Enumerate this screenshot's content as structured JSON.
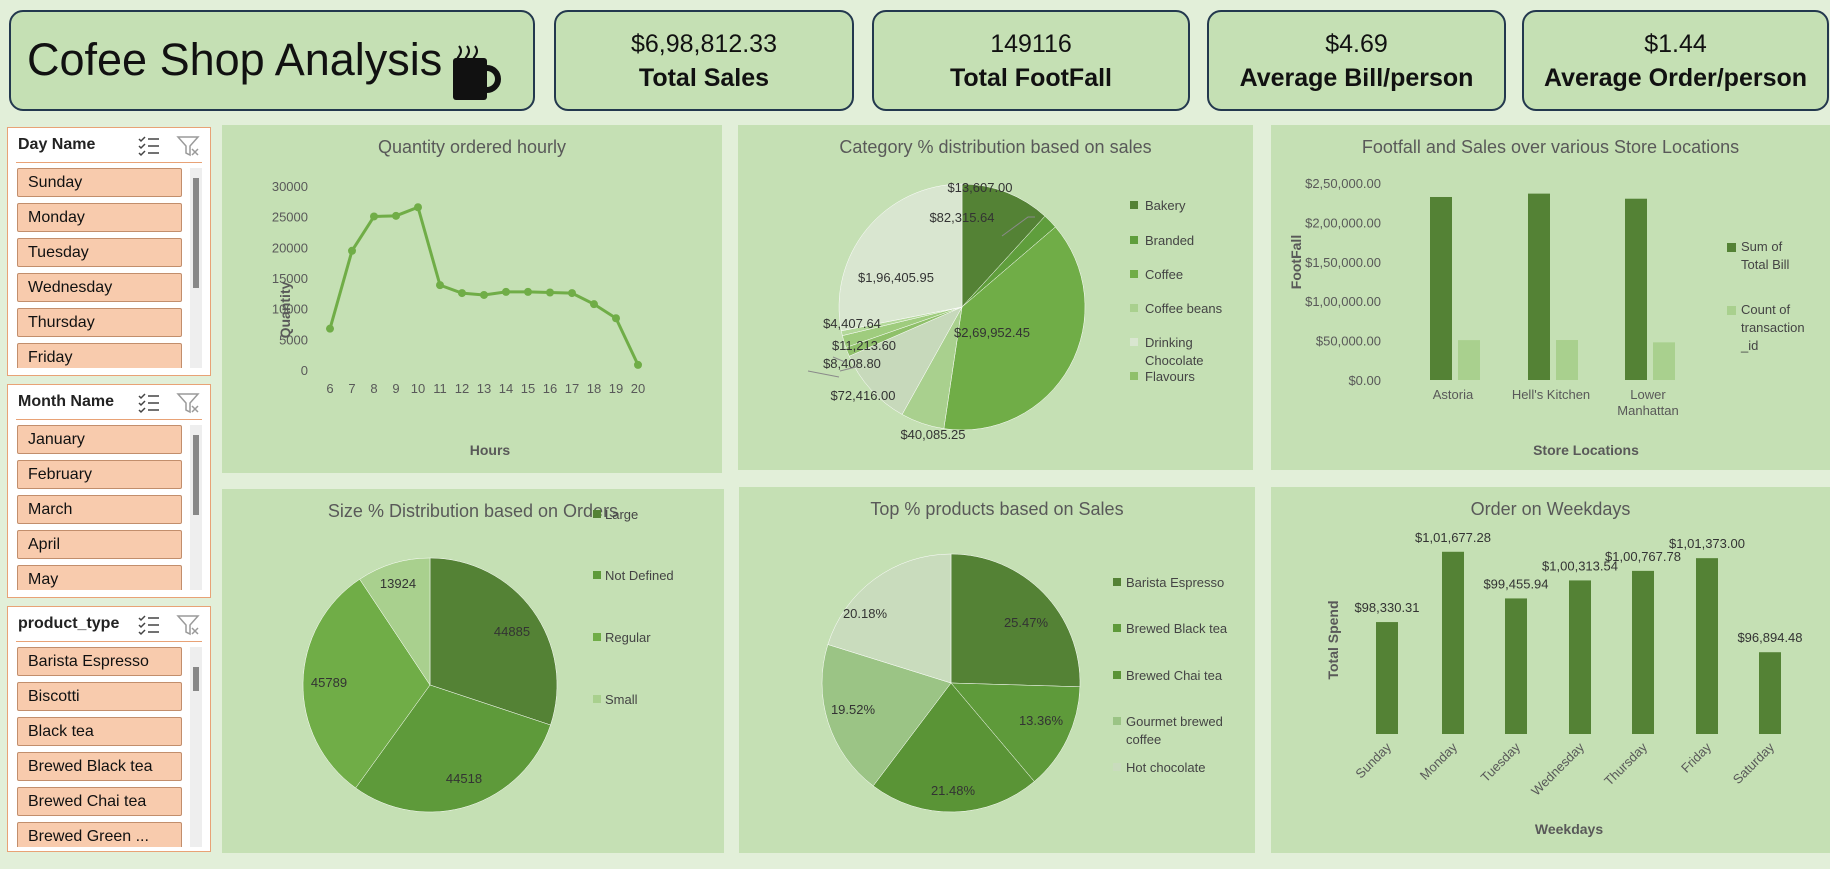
{
  "header": {
    "title": "Cofee Shop Analysis"
  },
  "kpis": [
    {
      "value": "$6,98,812.33",
      "label": "Total Sales"
    },
    {
      "value": "149116",
      "label": "Total FootFall"
    },
    {
      "value": "$4.69",
      "label": "Average Bill/person"
    },
    {
      "value": "$1.44",
      "label": "Average Order/person"
    }
  ],
  "slicers": {
    "day": {
      "title": "Day Name",
      "items": [
        "Sunday",
        "Monday",
        "Tuesday",
        "Wednesday",
        "Thursday",
        "Friday"
      ]
    },
    "month": {
      "title": "Month Name",
      "items": [
        "January",
        "February",
        "March",
        "April",
        "May"
      ]
    },
    "product": {
      "title": "product_type",
      "items": [
        "Barista Espresso",
        "Biscotti",
        "Black tea",
        "Brewed Black tea",
        "Brewed Chai tea",
        "Brewed Green ..."
      ]
    }
  },
  "colors": {
    "dark": "#548235",
    "mid": "#5e9a3a",
    "bright": "#70ad47",
    "light": "#a9d08e",
    "pale": "#d9e6d0",
    "bg": "#c5e0b4"
  },
  "chart_data": [
    {
      "type": "line",
      "title": "Quantity ordered hourly",
      "xlabel": "Hours",
      "ylabel": "Quantity",
      "x": [
        6,
        7,
        8,
        9,
        10,
        11,
        12,
        13,
        14,
        15,
        16,
        17,
        18,
        19,
        20
      ],
      "values": [
        6900,
        19600,
        25200,
        25300,
        26700,
        14000,
        12700,
        12400,
        12900,
        12900,
        12800,
        12700,
        10900,
        8600,
        1000
      ],
      "ylim": [
        0,
        30000
      ],
      "yticks": [
        "30000",
        "25000",
        "20000",
        "15000",
        "10000",
        "5000",
        "0"
      ]
    },
    {
      "type": "pie",
      "title": "Category % distribution based on sales",
      "series": [
        {
          "name": "Bakery",
          "value": 82315.64,
          "label": "$82,315.64"
        },
        {
          "name": "Branded",
          "value": 13607.0,
          "label": "$13,607.00"
        },
        {
          "name": "Coffee",
          "value": 269952.45,
          "label": "$2,69,952.45"
        },
        {
          "name": "Coffee beans",
          "value": 40085.25,
          "label": "$40,085.25"
        },
        {
          "name": "Drinking Chocolate",
          "value": 72416.0,
          "label": "$72,416.00"
        },
        {
          "name": "Flavours",
          "value": 8408.8,
          "label": "$8,408.80"
        },
        {
          "name": "",
          "value": 11213.6,
          "label": "$11,213.60"
        },
        {
          "name": "",
          "value": 4407.64,
          "label": "$4,407.64"
        },
        {
          "name": "",
          "value": 196405.95,
          "label": "$1,96,405.95"
        }
      ],
      "legend": [
        "Bakery",
        "Branded",
        "Coffee",
        "Coffee beans",
        "Drinking Chocolate",
        "Flavours"
      ]
    },
    {
      "type": "bar",
      "title": "Footfall and Sales over various Store Locations",
      "xlabel": "Store Locations",
      "ylabel": "FootFall",
      "categories": [
        "Astoria",
        "Hell's Kitchen",
        "Lower Manhattan"
      ],
      "series": [
        {
          "name": "Sum of Total Bill",
          "values": [
            232244,
            236511,
            230057
          ]
        },
        {
          "name": "Count of transaction _id",
          "values": [
            50599,
            50735,
            47782
          ]
        }
      ],
      "ylim": [
        0,
        250000
      ],
      "yticks": [
        "$2,50,000.00",
        "$2,00,000.00",
        "$1,50,000.00",
        "$1,00,000.00",
        "$50,000.00",
        "$0.00"
      ]
    },
    {
      "type": "pie",
      "title": "Size % Distribution based on Orders",
      "series": [
        {
          "name": "Large",
          "value": 44885,
          "label": "44885"
        },
        {
          "name": "Not Defined",
          "value": 44518,
          "label": "44518"
        },
        {
          "name": "Regular",
          "value": 45789,
          "label": "45789"
        },
        {
          "name": "Small",
          "value": 13924,
          "label": "13924"
        }
      ]
    },
    {
      "type": "pie",
      "title": "Top % products based on Sales",
      "series": [
        {
          "name": "Barista Espresso",
          "value": 25.47,
          "label": "25.47%"
        },
        {
          "name": "Brewed Black tea",
          "value": 13.36,
          "label": "13.36%"
        },
        {
          "name": "Brewed Chai tea",
          "value": 21.48,
          "label": "21.48%"
        },
        {
          "name": "Gourmet brewed coffee",
          "value": 19.52,
          "label": "19.52%"
        },
        {
          "name": "Hot chocolate",
          "value": 20.18,
          "label": "20.18%"
        }
      ]
    },
    {
      "type": "bar",
      "title": "Order on Weekdays",
      "xlabel": "Weekdays",
      "ylabel": "Total Spend",
      "categories": [
        "Sunday",
        "Monday",
        "Tuesday",
        "Wednesday",
        "Thursday",
        "Friday",
        "Saturday"
      ],
      "values": [
        98330.31,
        101677.28,
        99455.94,
        100313.54,
        100767.78,
        101373.0,
        96894.48
      ],
      "labels": [
        "$98,330.31",
        "$1,01,677.28",
        "$99,455.94",
        "$1,00,313.54",
        "$1,00,767.78",
        "$1,01,373.00",
        "$96,894.48"
      ]
    }
  ]
}
